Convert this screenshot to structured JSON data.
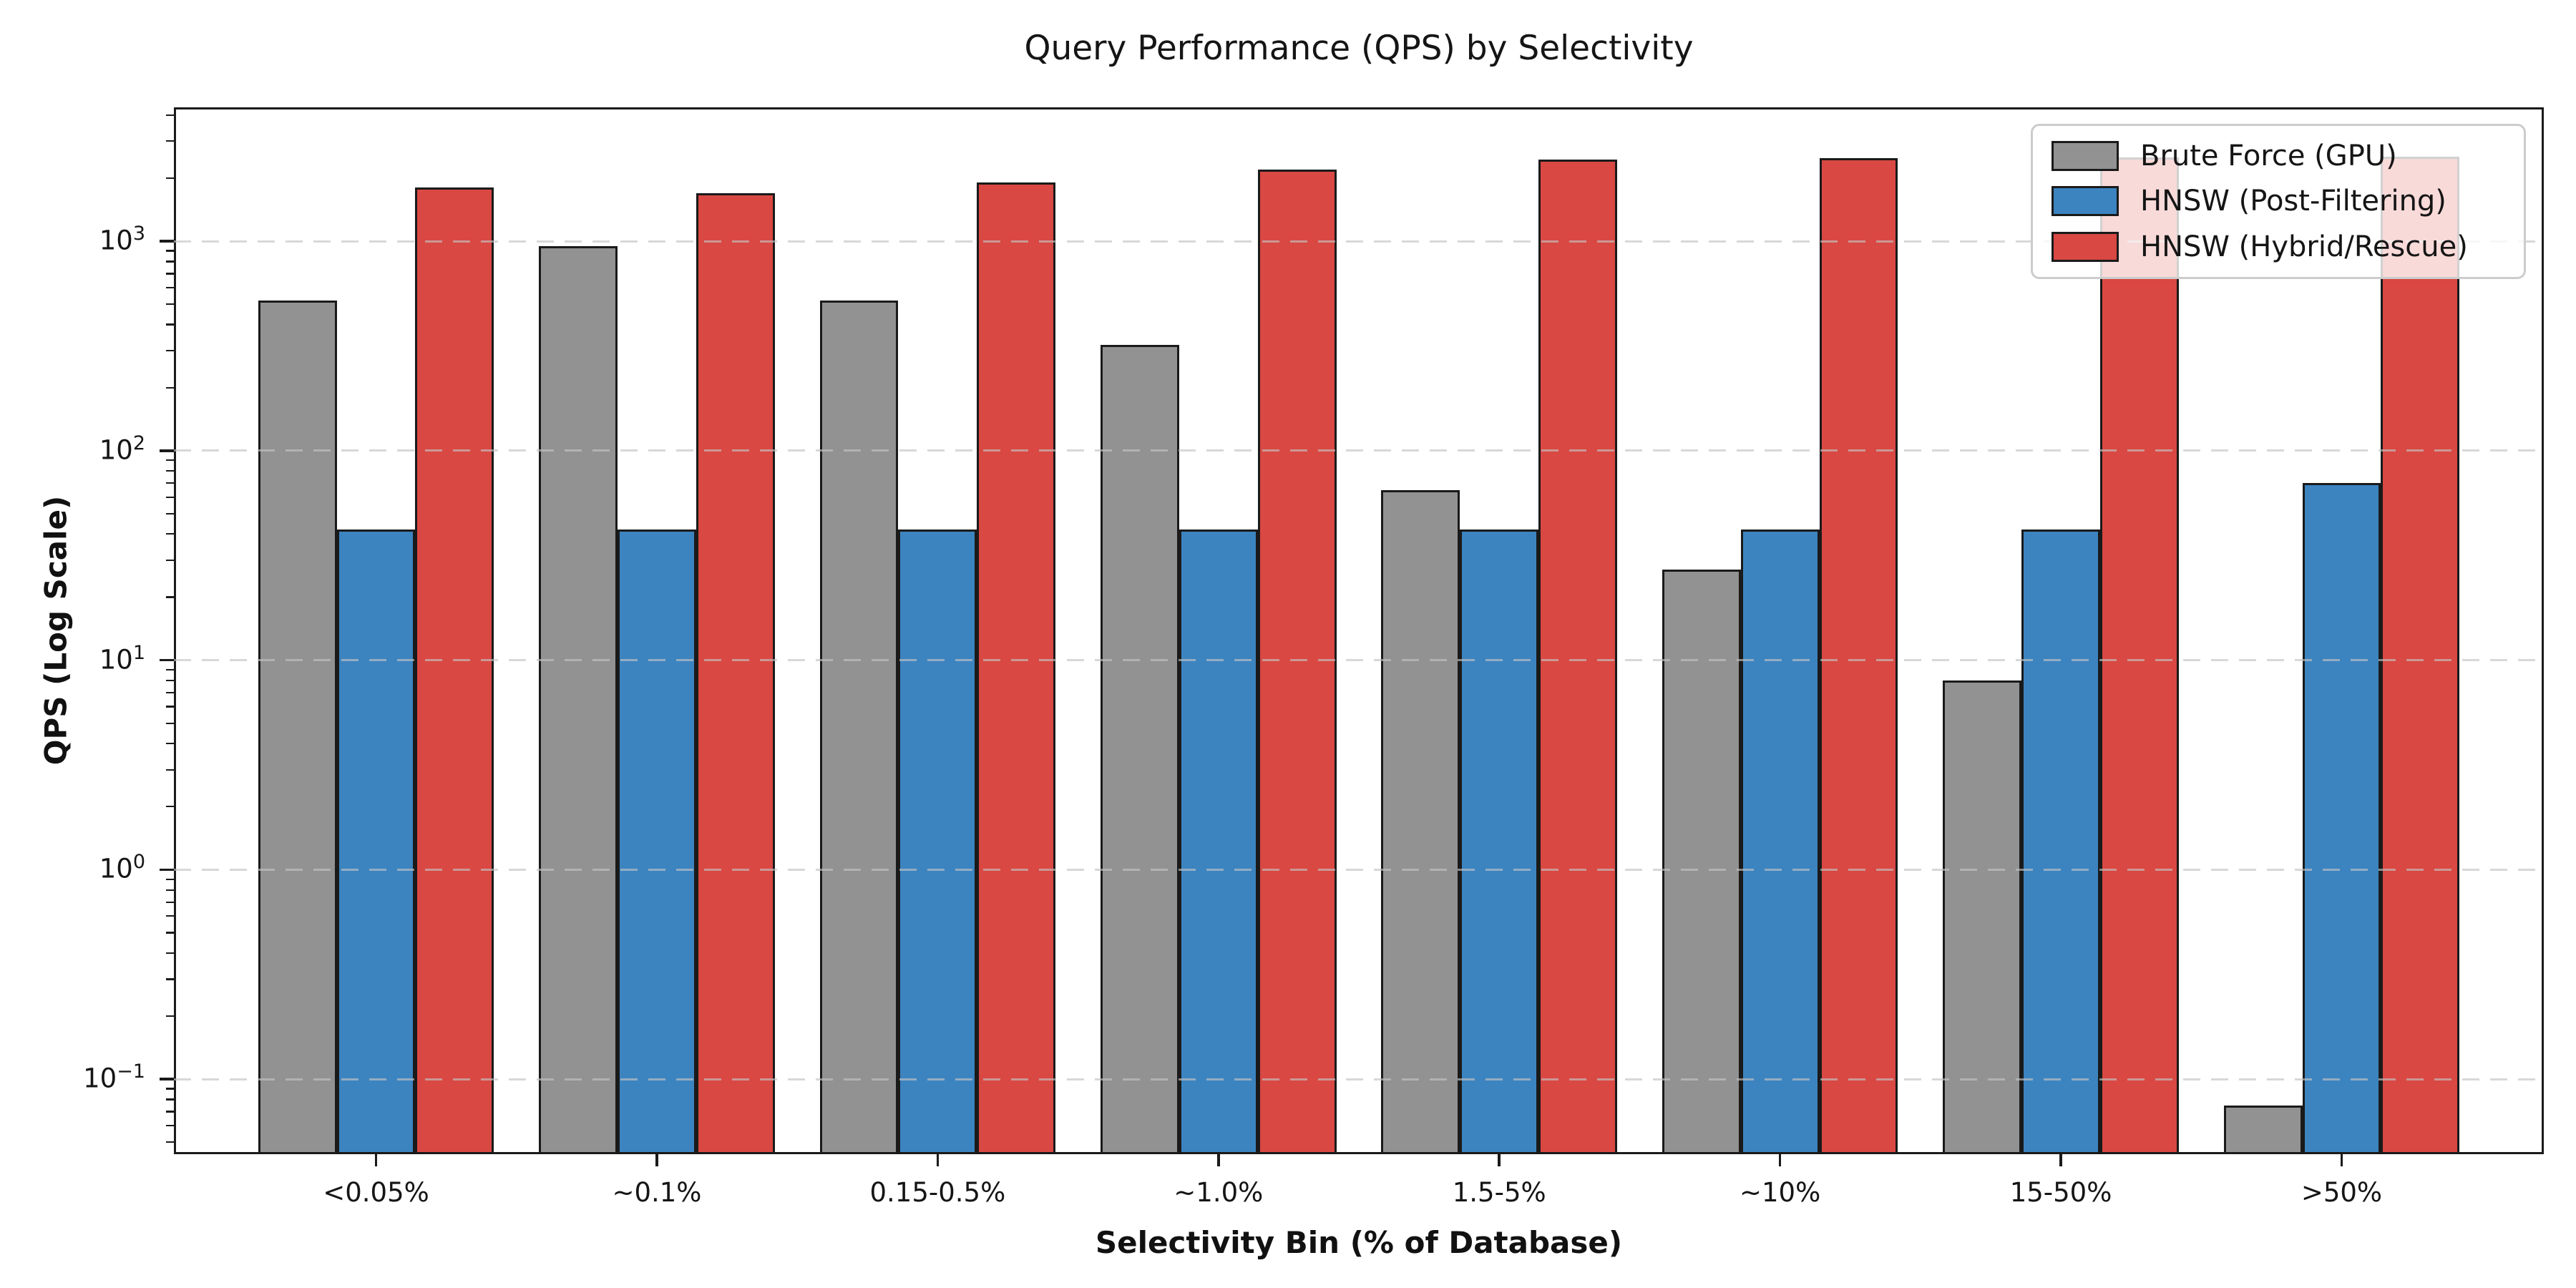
{
  "chart_data": {
    "type": "bar",
    "title": "Query Performance (QPS) by Selectivity",
    "xlabel": "Selectivity Bin (% of Database)",
    "ylabel": "QPS (Log Scale)",
    "yscale": "log",
    "ylim": [
      0.044,
      4350
    ],
    "y_tick_exponents": [
      -1,
      0,
      1,
      2,
      3
    ],
    "grid": "horizontal dashed lines at major decades",
    "legend_position": "upper right",
    "categories": [
      "<0.05%",
      "~0.1%",
      "0.15-0.5%",
      "~1.0%",
      "1.5-5%",
      "~10%",
      "15-50%",
      ">50%"
    ],
    "series": [
      {
        "name": "Brute Force (GPU)",
        "color": "#929292",
        "values": [
          520,
          950,
          520,
          320,
          65,
          27,
          8,
          0.075
        ]
      },
      {
        "name": "HNSW (Post-Filtering)",
        "color": "#3c84c0",
        "values": [
          42,
          42,
          42,
          42,
          42,
          42,
          42,
          70
        ]
      },
      {
        "name": "HNSW (Hybrid/Rescue)",
        "color": "#d94843",
        "values": [
          1800,
          1700,
          1900,
          2200,
          2450,
          2500,
          2520,
          2540
        ]
      }
    ],
    "bar_edge_color": "#1a1a1a",
    "background_color": "#ffffff"
  }
}
